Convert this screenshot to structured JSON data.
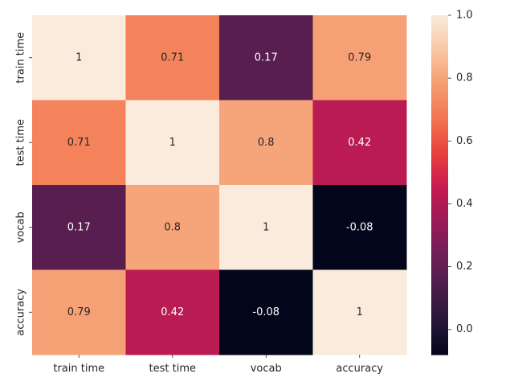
{
  "chart_data": {
    "type": "heatmap",
    "title": "",
    "xlabel": "",
    "ylabel": "",
    "row_labels": [
      "train time",
      "test time",
      "vocab",
      "accuracy"
    ],
    "col_labels": [
      "train time",
      "test time",
      "vocab",
      "accuracy"
    ],
    "values": [
      [
        1,
        0.71,
        0.17,
        0.79
      ],
      [
        0.71,
        1,
        0.8,
        0.42
      ],
      [
        0.17,
        0.8,
        1,
        -0.08
      ],
      [
        0.79,
        0.42,
        -0.08,
        1
      ]
    ],
    "annotations": [
      [
        "1",
        "0.71",
        "0.17",
        "0.79"
      ],
      [
        "0.71",
        "1",
        "0.8",
        "0.42"
      ],
      [
        "0.17",
        "0.8",
        "1",
        "-0.08"
      ],
      [
        "0.79",
        "0.42",
        "-0.08",
        "1"
      ]
    ],
    "vmin": -0.08,
    "vmax": 1.0,
    "colormap": "rocket",
    "colorbar": {
      "ticks": [
        0.0,
        0.2,
        0.4,
        0.6,
        0.8,
        1.0
      ],
      "tick_labels": [
        "0.0",
        "0.2",
        "0.4",
        "0.6",
        "0.8",
        "1.0"
      ]
    }
  }
}
